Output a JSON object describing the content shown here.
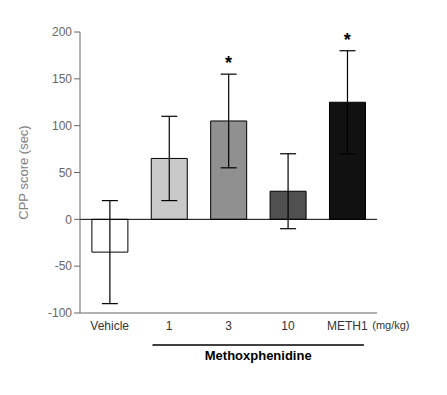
{
  "chart_data": {
    "type": "bar",
    "categories": [
      "Vehicle",
      "1",
      "3",
      "10",
      "METH1"
    ],
    "values": [
      -35,
      65,
      105,
      30,
      125
    ],
    "errors": [
      55,
      45,
      50,
      40,
      55
    ],
    "colors": [
      "#ffffff",
      "#c8c8c8",
      "#909090",
      "#505050",
      "#111111"
    ],
    "ylabel": "CPP score (sec)",
    "ylim": [
      -100,
      200
    ],
    "yticks": [
      -100,
      -50,
      0,
      50,
      100,
      150,
      200
    ],
    "grid": false,
    "annotations": [
      {
        "text": "*",
        "category": "3"
      },
      {
        "text": "*",
        "category": "METH1"
      },
      {
        "text": "Methoxphenidine",
        "span": [
          "1",
          "METH1"
        ]
      },
      {
        "text": "(mg/kg)",
        "after": "METH1"
      }
    ]
  }
}
